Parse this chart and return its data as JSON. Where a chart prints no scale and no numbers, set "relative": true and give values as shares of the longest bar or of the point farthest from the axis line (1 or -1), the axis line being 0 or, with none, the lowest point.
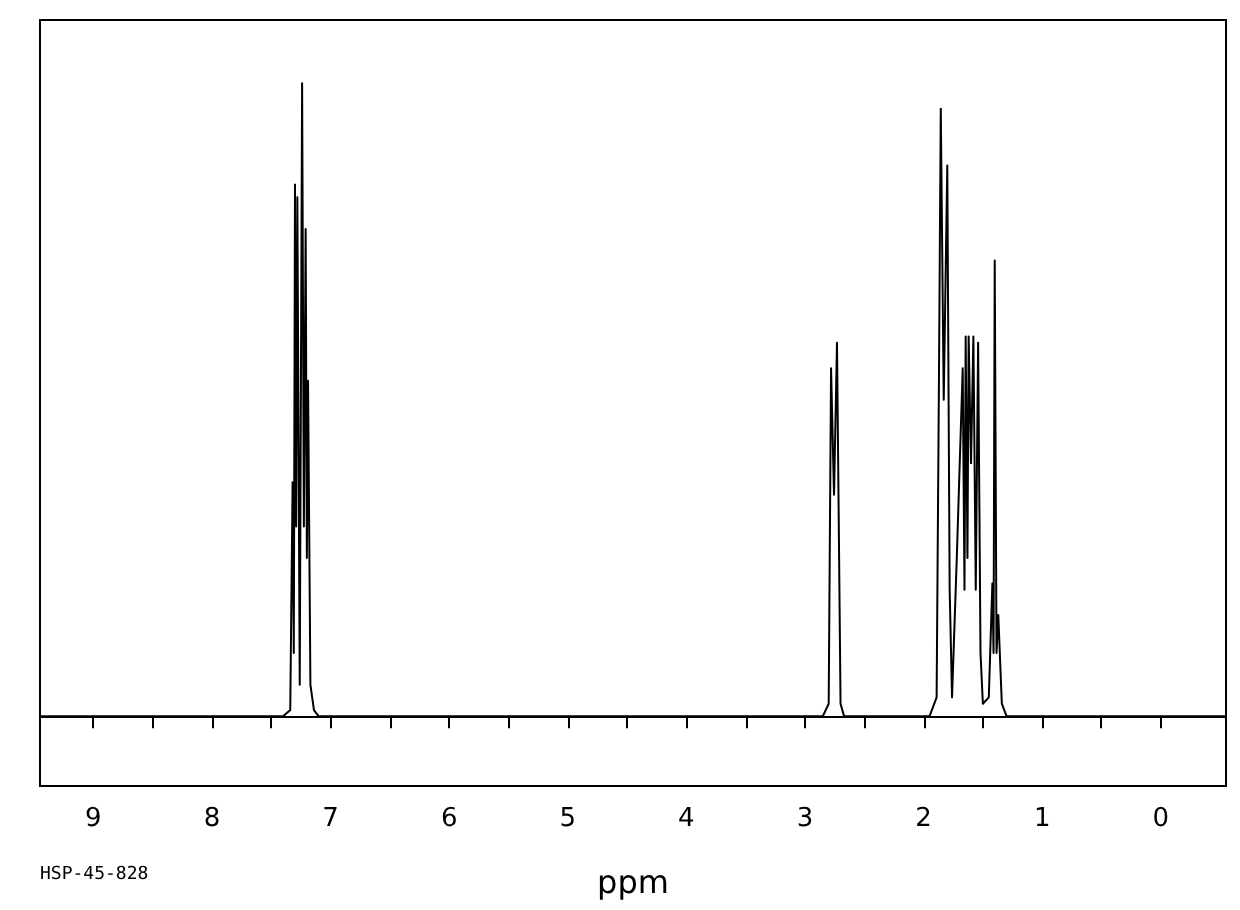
{
  "chart_data": {
    "type": "line",
    "relative": true,
    "xlabel": "ppm",
    "annotations": [
      "HSP-45-828"
    ],
    "xlim": [
      9.45,
      -0.55
    ],
    "xticks": [
      9,
      {
        "value": 8.5,
        "label": null
      },
      8,
      {
        "value": 7.5,
        "label": null
      },
      7,
      {
        "value": 6.5,
        "label": null
      },
      6,
      {
        "value": 5.5,
        "label": null
      },
      5,
      {
        "value": 4.5,
        "label": null
      },
      4,
      {
        "value": 3.5,
        "label": null
      },
      3,
      {
        "value": 2.5,
        "label": null
      },
      2,
      {
        "value": 1.5,
        "label": null
      },
      1,
      {
        "value": 0.5,
        "label": null
      },
      0
    ],
    "tick_labels": "x",
    "grid": false,
    "marker": "none",
    "line_style": "solid",
    "series": [
      {
        "color": "#000000",
        "x": [
          9.45,
          7.4,
          7.34,
          7.32,
          7.31,
          7.3,
          7.29,
          7.28,
          7.26,
          7.24,
          7.225,
          7.21,
          7.2,
          7.19,
          7.17,
          7.14,
          7.1,
          2.85,
          2.8,
          2.78,
          2.755,
          2.73,
          2.7,
          2.67,
          1.95,
          1.89,
          1.87,
          1.855,
          1.83,
          1.8,
          1.78,
          1.76,
          1.72,
          1.67,
          1.655,
          1.645,
          1.63,
          1.62,
          1.6,
          1.58,
          1.56,
          1.54,
          1.52,
          1.5,
          1.45,
          1.42,
          1.41,
          1.4,
          1.385,
          1.37,
          1.34,
          1.3,
          -0.55
        ],
        "values": [
          0,
          0,
          0.01,
          0.37,
          0.1,
          0.84,
          0.3,
          0.82,
          0.05,
          1,
          0.3,
          0.77,
          0.25,
          0.53,
          0.05,
          0.01,
          0,
          0,
          0.02,
          0.55,
          0.35,
          0.59,
          0.02,
          0,
          0,
          0.03,
          0.54,
          0.96,
          0.5,
          0.87,
          0.2,
          0.03,
          0.25,
          0.55,
          0.2,
          0.6,
          0.25,
          0.6,
          0.4,
          0.6,
          0.2,
          0.59,
          0.1,
          0.02,
          0.03,
          0.21,
          0.1,
          0.72,
          0.1,
          0.16,
          0.02,
          0,
          0
        ]
      }
    ]
  }
}
